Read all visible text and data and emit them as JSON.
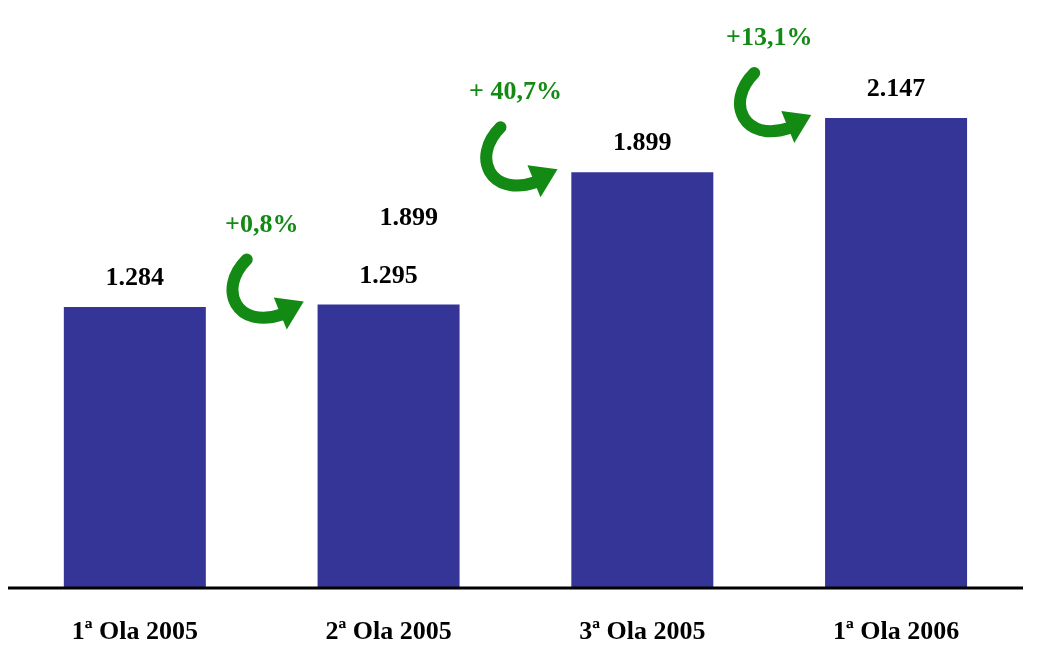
{
  "chart_data": {
    "type": "bar",
    "categories": [
      "1ª Ola 2005",
      "2ª Ola 2005",
      "3ª Ola 2005",
      "1ª Ola 2006"
    ],
    "values": [
      1284,
      1295,
      1899,
      2147
    ],
    "value_labels": [
      "1.284",
      "1.295",
      "1.899",
      "2.147"
    ],
    "color": "#353597",
    "annotations": [
      "+0,8%",
      "+ 40,7%",
      "+13,1%",
      "1.899"
    ]
  }
}
